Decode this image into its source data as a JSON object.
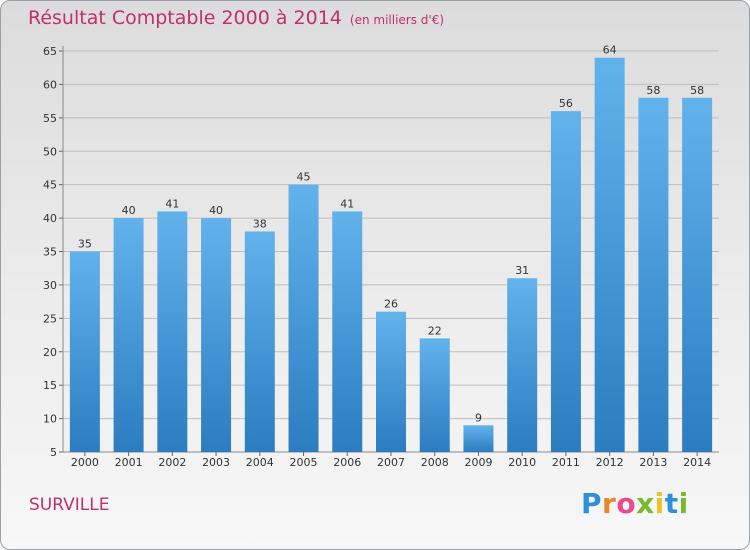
{
  "title": "Résultat Comptable 2000 à 2014",
  "subtitle": "(en milliers d'€)",
  "city": "SURVILLE",
  "logo": "Proxiti",
  "colors": {
    "title": "#c0306a",
    "bar_top": "#62b2ec",
    "bar_bottom": "#2b7dc0",
    "grid": "#bdbdbd"
  },
  "chart_data": {
    "type": "bar",
    "categories": [
      "2000",
      "2001",
      "2002",
      "2003",
      "2004",
      "2005",
      "2006",
      "2007",
      "2008",
      "2009",
      "2010",
      "2011",
      "2012",
      "2013",
      "2014"
    ],
    "values": [
      35,
      40,
      41,
      40,
      38,
      45,
      41,
      26,
      22,
      9,
      31,
      56,
      64,
      58,
      58
    ],
    "yticks": [
      5,
      10,
      15,
      20,
      25,
      30,
      35,
      40,
      45,
      50,
      55,
      60,
      65
    ],
    "ylim": [
      5,
      65
    ],
    "grid": true,
    "legend": "none"
  }
}
